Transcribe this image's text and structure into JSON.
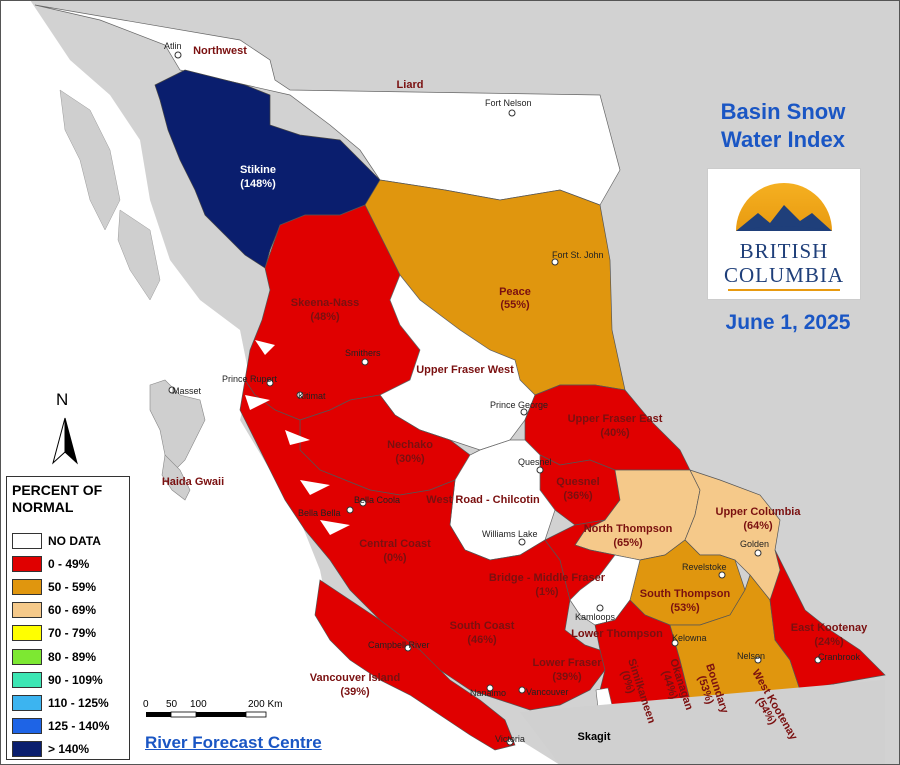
{
  "title": {
    "line1": "Basin Snow",
    "line2": "Water Index"
  },
  "date": "June 1, 2025",
  "logo": {
    "line1": "BRITISH",
    "line2": "COLUMBIA"
  },
  "credit": "River Forecast Centre",
  "north": "N",
  "scale": {
    "labels": [
      "0",
      "50",
      "100",
      "200 Km"
    ]
  },
  "legend": {
    "title_line1": "PERCENT OF",
    "title_line2": "NORMAL",
    "items": [
      {
        "label": "NO DATA",
        "color": "#ffffff"
      },
      {
        "label": "0 - 49%",
        "color": "#e00000"
      },
      {
        "label": "50 - 59%",
        "color": "#e0960e"
      },
      {
        "label": "60 - 69%",
        "color": "#f5c98a"
      },
      {
        "label": "70 - 79%",
        "color": "#ffff00"
      },
      {
        "label": "80 - 89%",
        "color": "#7de832"
      },
      {
        "label": "90 - 109%",
        "color": "#3ce6b4"
      },
      {
        "label": "110 - 125%",
        "color": "#3cb4f0"
      },
      {
        "label": "125 - 140%",
        "color": "#1e64e6"
      },
      {
        "label": "> 140%",
        "color": "#0a1e6e"
      }
    ]
  },
  "basins": {
    "northwest": {
      "name": "Northwest"
    },
    "liard": {
      "name": "Liard"
    },
    "stikine": {
      "name": "Stikine",
      "pct": "(148%)"
    },
    "skeena": {
      "name": "Skeena-Nass",
      "pct": "(48%)"
    },
    "peace": {
      "name": "Peace",
      "pct": "(55%)"
    },
    "ufw": {
      "name": "Upper Fraser West"
    },
    "ufe": {
      "name": "Upper Fraser East",
      "pct": "(40%)"
    },
    "nechako": {
      "name": "Nechako",
      "pct": "(30%)"
    },
    "haida": {
      "name": "Haida Gwaii"
    },
    "wrc": {
      "name": "West Road - Chilcotin"
    },
    "quesnel": {
      "name": "Quesnel",
      "pct": "(36%)"
    },
    "nthompson": {
      "name": "North Thompson",
      "pct": "(65%)"
    },
    "ucolumbia": {
      "name": "Upper Columbia",
      "pct": "(64%)"
    },
    "ccoast": {
      "name": "Central Coast",
      "pct": "(0%)"
    },
    "bridge": {
      "name": "Bridge - Middle Fraser",
      "pct": "(1%)"
    },
    "sthompson": {
      "name": "South Thompson",
      "pct": "(53%)"
    },
    "scoast": {
      "name": "South Coast",
      "pct": "(46%)"
    },
    "lthompson": {
      "name": "Lower Thompson"
    },
    "ekootenay": {
      "name": "East Kootenay",
      "pct": "(24%)"
    },
    "vi": {
      "name": "Vancouver Island",
      "pct": "(39%)"
    },
    "lfraser": {
      "name": "Lower Fraser",
      "pct": "(39%)"
    },
    "skagit": {
      "name": "Skagit"
    },
    "simil": {
      "name": "Similkameen",
      "pct": "(0%)"
    },
    "okanagan": {
      "name": "Okanagan",
      "pct": "(44%)"
    },
    "boundary": {
      "name": "Boundary",
      "pct": "(53%)"
    },
    "wkootenay": {
      "name": "West Kootenay",
      "pct": "(54%)"
    }
  },
  "cities": {
    "atlin": "Atlin",
    "fortnelson": "Fort Nelson",
    "fsj": "Fort St. John",
    "smithers": "Smithers",
    "pr": "Prince Rupert",
    "kitimat": "Kitimat",
    "masset": "Masset",
    "pg": "Prince George",
    "quesnel": "Quesnel",
    "bc": "Bella Coola",
    "bb": "Bella Bella",
    "wl": "Williams Lake",
    "golden": "Golden",
    "revelstoke": "Revelstoke",
    "kamloops": "Kamloops",
    "kelowna": "Kelowna",
    "cr": "Campbell River",
    "nelson": "Nelson",
    "cranbrook": "Cranbrook",
    "nanaimo": "Nanaimo",
    "vancouver": "Vancouver",
    "victoria": "Victoria"
  }
}
